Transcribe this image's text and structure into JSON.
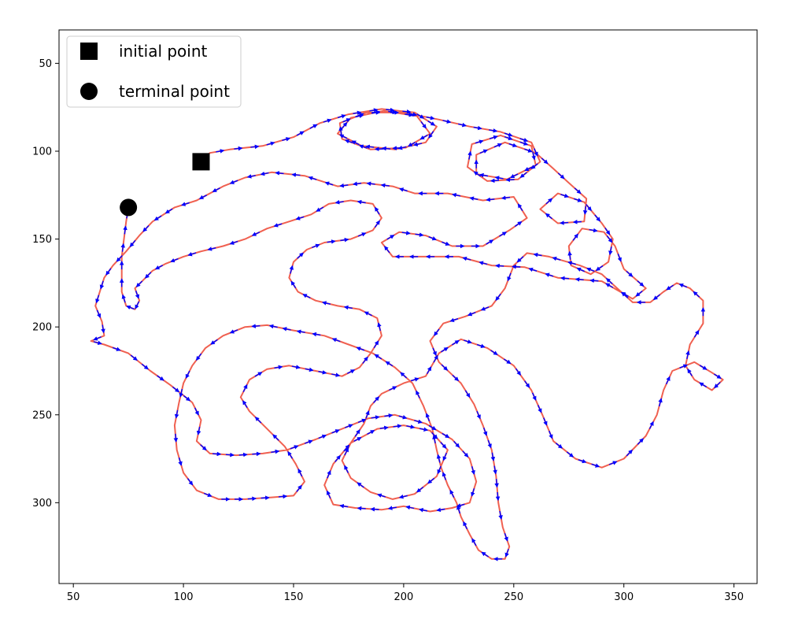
{
  "chart_data": {
    "type": "line",
    "title": "",
    "xlabel": "",
    "ylabel": "",
    "xlim": [
      43.5,
      360.5
    ],
    "ylim": [
      346,
      31
    ],
    "y_inverted": true,
    "grid": false,
    "legend_placement": "top-left",
    "xticks": [
      50,
      100,
      150,
      200,
      250,
      300,
      350
    ],
    "yticks": [
      50,
      100,
      150,
      200,
      250,
      300
    ],
    "colors": {
      "trajectory": "#f06050",
      "arrows": "#0000ff",
      "markers": "#000000"
    },
    "legend": [
      {
        "label": "initial point",
        "marker": "square"
      },
      {
        "label": "terminal point",
        "marker": "circle"
      }
    ],
    "initial_point": {
      "x": 108,
      "y": 106
    },
    "terminal_point": {
      "x": 75,
      "y": 132
    },
    "trajectory": [
      [
        108,
        106
      ],
      [
        112,
        101
      ],
      [
        121,
        99
      ],
      [
        136,
        97
      ],
      [
        150,
        92
      ],
      [
        162,
        84
      ],
      [
        175,
        79
      ],
      [
        190,
        76
      ],
      [
        205,
        78
      ],
      [
        215,
        86
      ],
      [
        210,
        95
      ],
      [
        196,
        99
      ],
      [
        181,
        97
      ],
      [
        170,
        90
      ],
      [
        176,
        81
      ],
      [
        191,
        77
      ],
      [
        206,
        80
      ],
      [
        212,
        90
      ],
      [
        201,
        98
      ],
      [
        185,
        99
      ],
      [
        172,
        93
      ],
      [
        171,
        84
      ],
      [
        183,
        78
      ],
      [
        200,
        78
      ],
      [
        216,
        82
      ],
      [
        230,
        86
      ],
      [
        244,
        89
      ],
      [
        258,
        95
      ],
      [
        262,
        106
      ],
      [
        252,
        116
      ],
      [
        238,
        117
      ],
      [
        229,
        109
      ],
      [
        231,
        96
      ],
      [
        244,
        91
      ],
      [
        258,
        97
      ],
      [
        260,
        108
      ],
      [
        247,
        116
      ],
      [
        233,
        113
      ],
      [
        233,
        102
      ],
      [
        246,
        95
      ],
      [
        260,
        101
      ],
      [
        268,
        110
      ],
      [
        275,
        118
      ],
      [
        283,
        127
      ],
      [
        282,
        140
      ],
      [
        270,
        141
      ],
      [
        262,
        133
      ],
      [
        270,
        124
      ],
      [
        282,
        129
      ],
      [
        290,
        141
      ],
      [
        295,
        150
      ],
      [
        293,
        163
      ],
      [
        285,
        170
      ],
      [
        276,
        165
      ],
      [
        275,
        154
      ],
      [
        281,
        144
      ],
      [
        291,
        146
      ],
      [
        296,
        154
      ],
      [
        300,
        167
      ],
      [
        310,
        178
      ],
      [
        304,
        184
      ],
      [
        290,
        174
      ],
      [
        270,
        172
      ],
      [
        255,
        166
      ],
      [
        240,
        165
      ],
      [
        225,
        160
      ],
      [
        208,
        160
      ],
      [
        195,
        160
      ],
      [
        190,
        152
      ],
      [
        198,
        146
      ],
      [
        210,
        148
      ],
      [
        222,
        154
      ],
      [
        236,
        154
      ],
      [
        248,
        145
      ],
      [
        256,
        138
      ],
      [
        250,
        126
      ],
      [
        236,
        128
      ],
      [
        220,
        124
      ],
      [
        205,
        124
      ],
      [
        195,
        120
      ],
      [
        182,
        118
      ],
      [
        170,
        120
      ],
      [
        155,
        114
      ],
      [
        140,
        112
      ],
      [
        128,
        115
      ],
      [
        118,
        120
      ],
      [
        106,
        128
      ],
      [
        96,
        132
      ],
      [
        86,
        140
      ],
      [
        80,
        148
      ],
      [
        74,
        157
      ],
      [
        68,
        165
      ],
      [
        64,
        172
      ],
      [
        62,
        180
      ],
      [
        60,
        188
      ],
      [
        63,
        197
      ],
      [
        64,
        205
      ],
      [
        58,
        208
      ],
      [
        64,
        210
      ],
      [
        75,
        215
      ],
      [
        85,
        225
      ],
      [
        94,
        233
      ],
      [
        104,
        243
      ],
      [
        108,
        253
      ],
      [
        106,
        265
      ],
      [
        112,
        272
      ],
      [
        124,
        273
      ],
      [
        136,
        272
      ],
      [
        147,
        270
      ],
      [
        160,
        264
      ],
      [
        172,
        258
      ],
      [
        184,
        252
      ],
      [
        196,
        250
      ],
      [
        210,
        255
      ],
      [
        222,
        264
      ],
      [
        230,
        275
      ],
      [
        233,
        288
      ],
      [
        230,
        300
      ],
      [
        222,
        303
      ],
      [
        212,
        305
      ],
      [
        200,
        302
      ],
      [
        190,
        304
      ],
      [
        178,
        303
      ],
      [
        168,
        301
      ],
      [
        164,
        290
      ],
      [
        168,
        278
      ],
      [
        176,
        266
      ],
      [
        188,
        258
      ],
      [
        200,
        256
      ],
      [
        212,
        259
      ],
      [
        220,
        270
      ],
      [
        215,
        285
      ],
      [
        205,
        295
      ],
      [
        195,
        298
      ],
      [
        185,
        294
      ],
      [
        176,
        286
      ],
      [
        172,
        276
      ],
      [
        176,
        266
      ],
      [
        182,
        255
      ],
      [
        185,
        245
      ],
      [
        190,
        238
      ],
      [
        200,
        232
      ],
      [
        210,
        228
      ],
      [
        216,
        215
      ],
      [
        226,
        207
      ],
      [
        238,
        212
      ],
      [
        250,
        222
      ],
      [
        258,
        236
      ],
      [
        263,
        250
      ],
      [
        268,
        265
      ],
      [
        278,
        275
      ],
      [
        290,
        280
      ],
      [
        300,
        275
      ],
      [
        310,
        262
      ],
      [
        315,
        250
      ],
      [
        318,
        236
      ],
      [
        322,
        225
      ],
      [
        332,
        220
      ],
      [
        340,
        226
      ],
      [
        345,
        230
      ],
      [
        340,
        236
      ],
      [
        332,
        230
      ],
      [
        328,
        222
      ],
      [
        330,
        210
      ],
      [
        336,
        198
      ],
      [
        336,
        185
      ],
      [
        330,
        178
      ],
      [
        324,
        175
      ],
      [
        318,
        180
      ],
      [
        312,
        186
      ],
      [
        304,
        186
      ],
      [
        297,
        178
      ],
      [
        290,
        170
      ],
      [
        280,
        165
      ],
      [
        266,
        160
      ],
      [
        256,
        158
      ],
      [
        250,
        165
      ],
      [
        246,
        178
      ],
      [
        240,
        188
      ],
      [
        228,
        194
      ],
      [
        218,
        198
      ],
      [
        212,
        208
      ],
      [
        216,
        220
      ],
      [
        226,
        232
      ],
      [
        232,
        244
      ],
      [
        236,
        256
      ],
      [
        240,
        270
      ],
      [
        242,
        285
      ],
      [
        243,
        300
      ],
      [
        245,
        314
      ],
      [
        248,
        325
      ],
      [
        246,
        332
      ],
      [
        240,
        332
      ],
      [
        234,
        327
      ],
      [
        230,
        318
      ],
      [
        226,
        308
      ],
      [
        224,
        300
      ],
      [
        220,
        290
      ],
      [
        217,
        280
      ],
      [
        215,
        270
      ],
      [
        213,
        258
      ],
      [
        209,
        245
      ],
      [
        204,
        232
      ],
      [
        196,
        223
      ],
      [
        186,
        215
      ],
      [
        175,
        210
      ],
      [
        164,
        205
      ],
      [
        150,
        202
      ],
      [
        138,
        199
      ],
      [
        128,
        200
      ],
      [
        118,
        205
      ],
      [
        110,
        212
      ],
      [
        104,
        222
      ],
      [
        100,
        232
      ],
      [
        98,
        243
      ],
      [
        96,
        256
      ],
      [
        97,
        270
      ],
      [
        100,
        283
      ],
      [
        106,
        293
      ],
      [
        116,
        298
      ],
      [
        128,
        298
      ],
      [
        140,
        297
      ],
      [
        150,
        296
      ],
      [
        155,
        288
      ],
      [
        151,
        278
      ],
      [
        146,
        268
      ],
      [
        138,
        258
      ],
      [
        130,
        248
      ],
      [
        126,
        240
      ],
      [
        130,
        230
      ],
      [
        138,
        224
      ],
      [
        148,
        222
      ],
      [
        160,
        225
      ],
      [
        172,
        228
      ],
      [
        180,
        223
      ],
      [
        185,
        215
      ],
      [
        190,
        205
      ],
      [
        188,
        195
      ],
      [
        180,
        190
      ],
      [
        170,
        188
      ],
      [
        160,
        185
      ],
      [
        152,
        180
      ],
      [
        148,
        172
      ],
      [
        150,
        163
      ],
      [
        156,
        156
      ],
      [
        164,
        152
      ],
      [
        176,
        150
      ],
      [
        186,
        145
      ],
      [
        190,
        138
      ],
      [
        186,
        130
      ],
      [
        176,
        128
      ],
      [
        166,
        130
      ],
      [
        158,
        136
      ],
      [
        148,
        140
      ],
      [
        138,
        144
      ],
      [
        128,
        150
      ],
      [
        118,
        154
      ],
      [
        108,
        157
      ],
      [
        100,
        160
      ],
      [
        92,
        164
      ],
      [
        86,
        168
      ],
      [
        82,
        173
      ],
      [
        78,
        178
      ],
      [
        80,
        185
      ],
      [
        78,
        190
      ],
      [
        74,
        188
      ],
      [
        72,
        180
      ],
      [
        72,
        170
      ],
      [
        72,
        160
      ],
      [
        73,
        150
      ],
      [
        74,
        140
      ],
      [
        75,
        132
      ]
    ]
  }
}
